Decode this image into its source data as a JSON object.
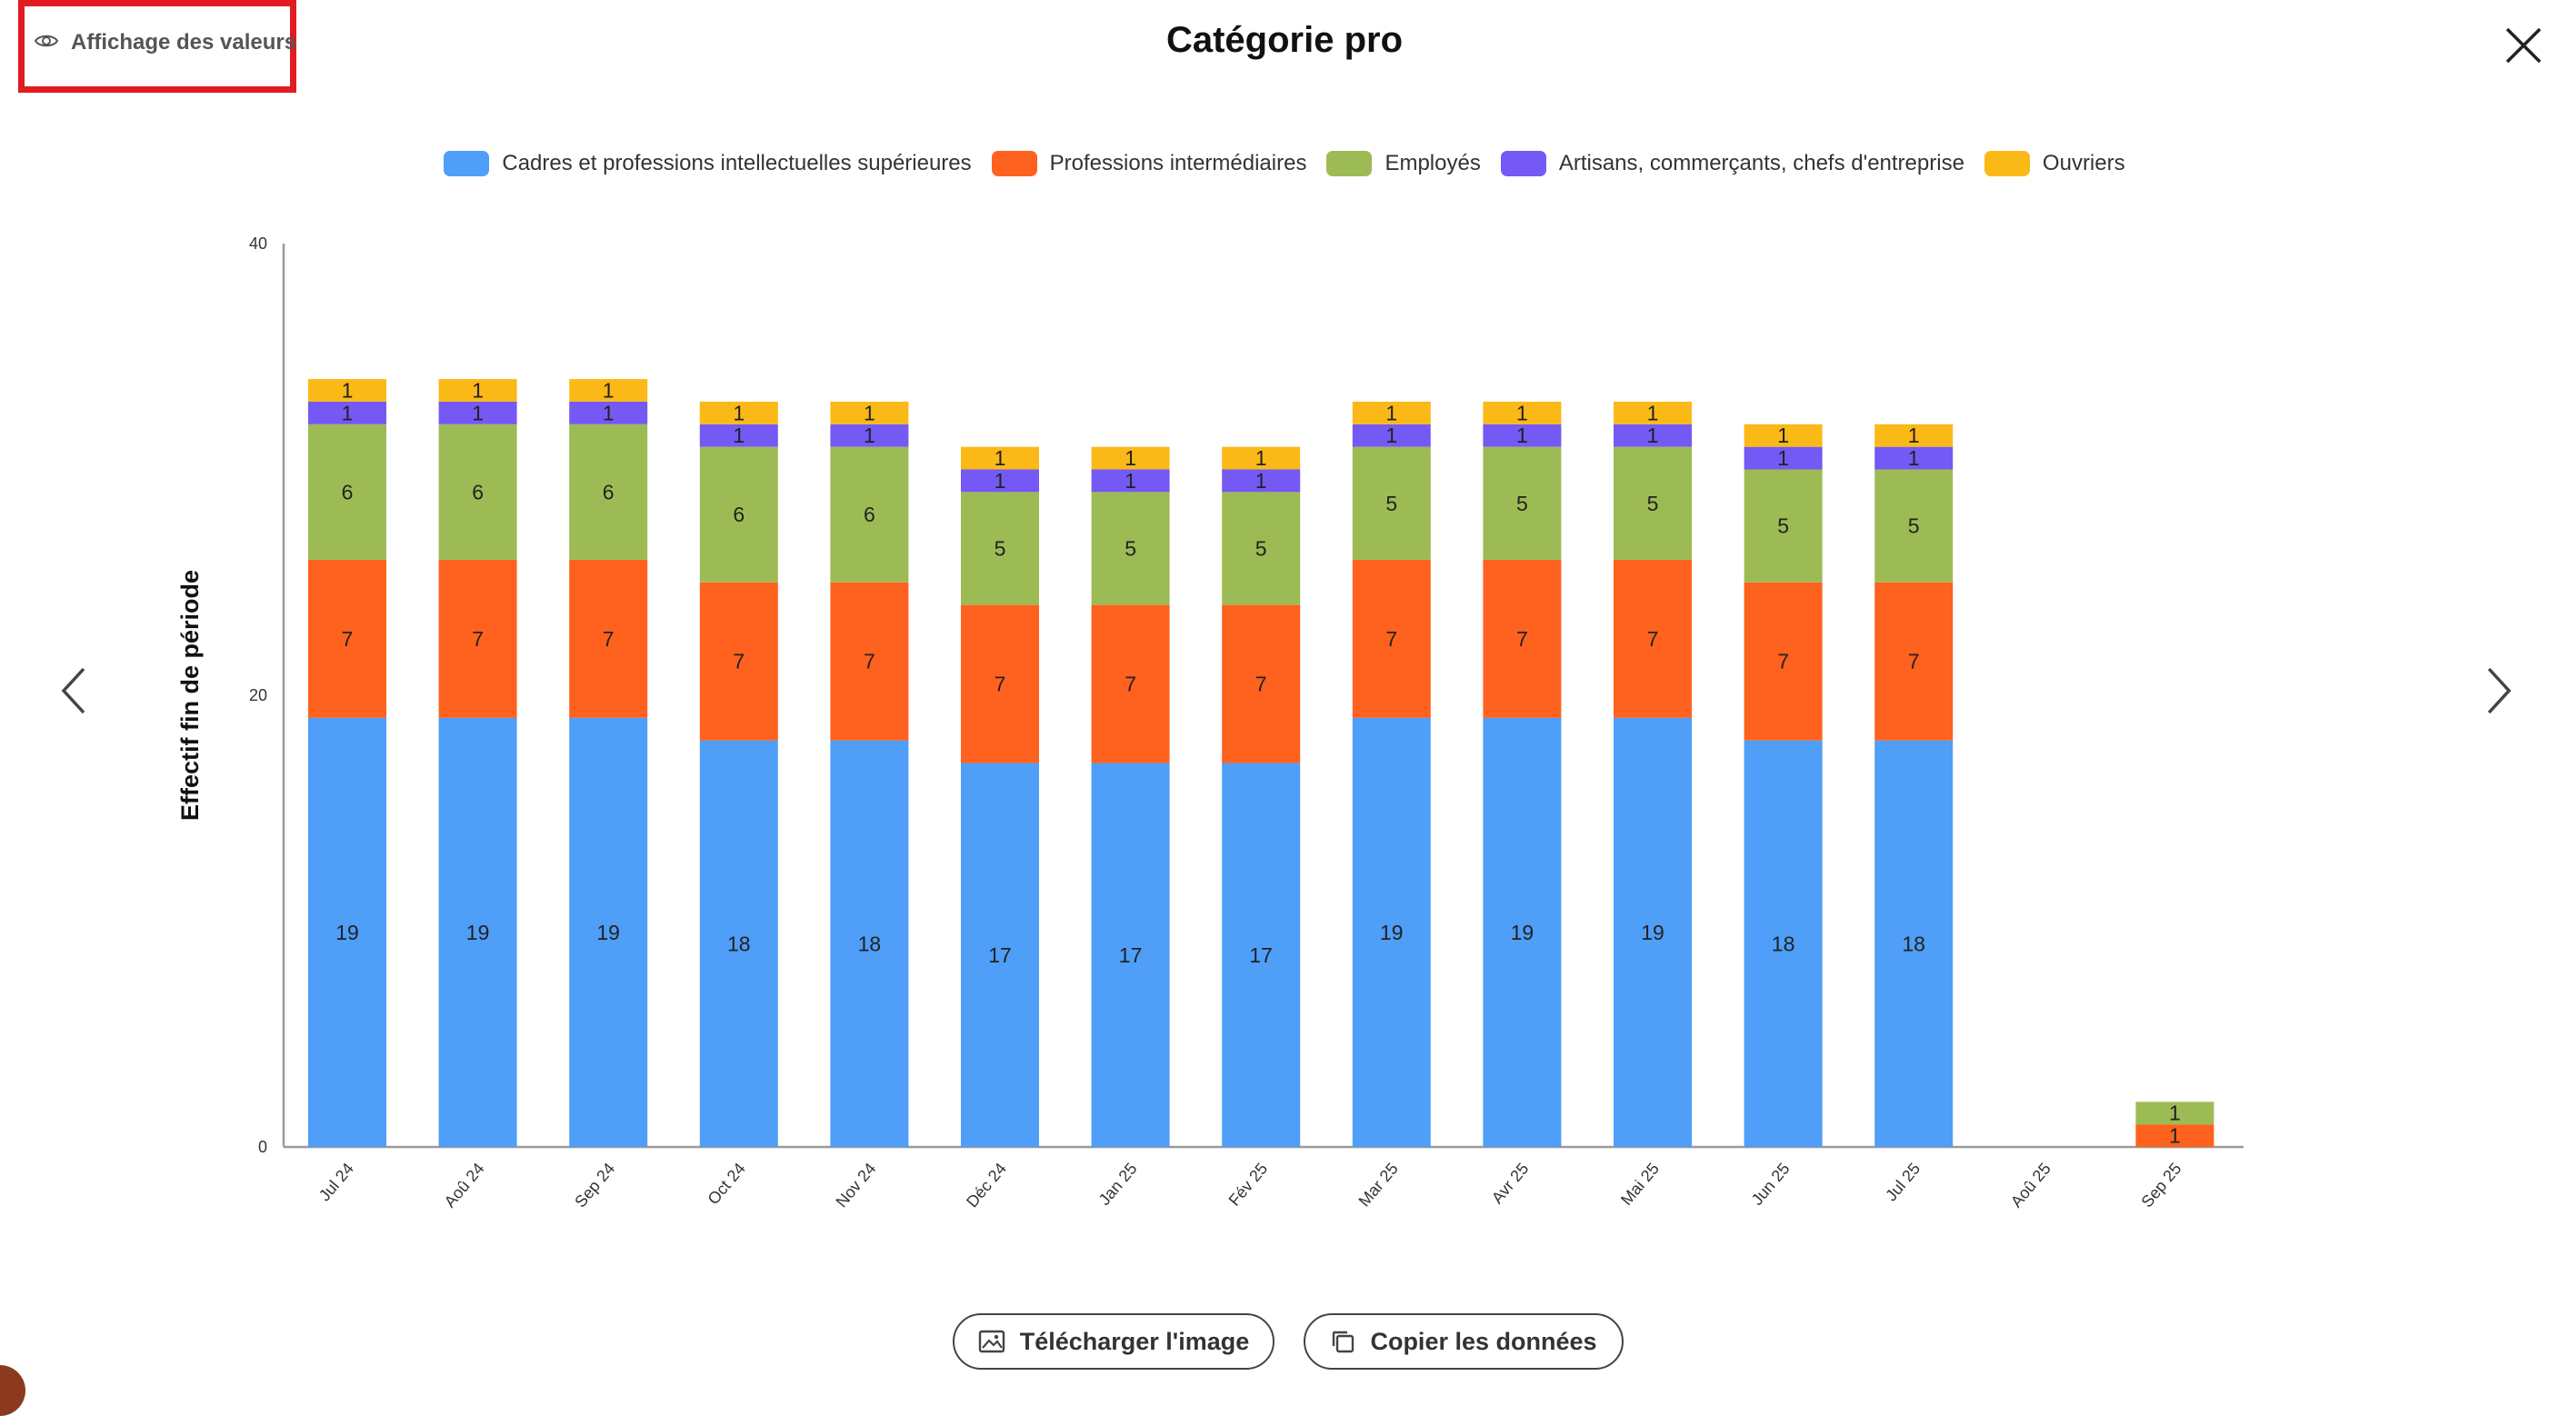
{
  "header": {
    "toggle_label": "Affichage des valeurs",
    "title": "Catégorie pro"
  },
  "buttons": {
    "download_label": "Télécharger l'image",
    "copy_label": "Copier les données"
  },
  "colors": {
    "highlight": "#e11b22",
    "axis": "#9a9a9a"
  },
  "chart_data": {
    "type": "bar",
    "stacked": true,
    "title": "Catégorie pro",
    "xlabel": "",
    "ylabel": "Effectif fin de période",
    "ylim": [
      0,
      40
    ],
    "yticks": [
      0,
      20,
      40
    ],
    "legend_position": "top-center",
    "categories": [
      "Jul 24",
      "Aoû 24",
      "Sep 24",
      "Oct 24",
      "Nov 24",
      "Déc 24",
      "Jan 25",
      "Fév 25",
      "Mar 25",
      "Avr 25",
      "Mai 25",
      "Jun 25",
      "Jul 25",
      "Aoû 25",
      "Sep 25"
    ],
    "series": [
      {
        "name": "Cadres et professions intellectuelles supérieures",
        "color": "#4f9ef8",
        "values": [
          19,
          19,
          19,
          18,
          18,
          17,
          17,
          17,
          19,
          19,
          19,
          18,
          18,
          0,
          0
        ]
      },
      {
        "name": "Professions intermédiaires",
        "color": "#ff611e",
        "values": [
          7,
          7,
          7,
          7,
          7,
          7,
          7,
          7,
          7,
          7,
          7,
          7,
          7,
          0,
          1
        ]
      },
      {
        "name": "Employés",
        "color": "#9dbb54",
        "values": [
          6,
          6,
          6,
          6,
          6,
          5,
          5,
          5,
          5,
          5,
          5,
          5,
          5,
          0,
          1
        ]
      },
      {
        "name": "Artisans, commerçants, chefs d'entreprise",
        "color": "#7459f5",
        "values": [
          1,
          1,
          1,
          1,
          1,
          1,
          1,
          1,
          1,
          1,
          1,
          1,
          1,
          0,
          0
        ]
      },
      {
        "name": "Ouvriers",
        "color": "#fbb917",
        "values": [
          1,
          1,
          1,
          1,
          1,
          1,
          1,
          1,
          1,
          1,
          1,
          1,
          1,
          0,
          0
        ]
      }
    ]
  }
}
